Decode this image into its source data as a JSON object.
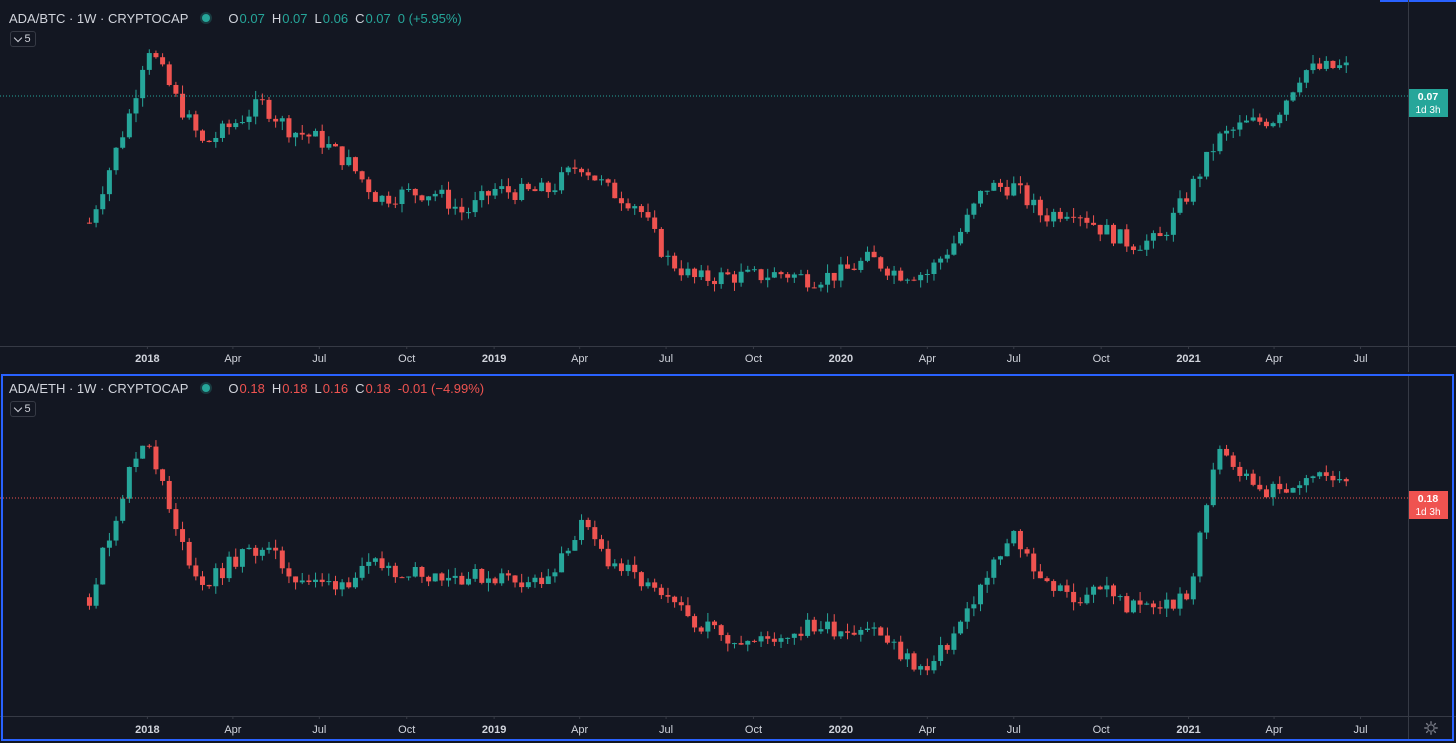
{
  "colors": {
    "background": "#131722",
    "up": "#26a69a",
    "down": "#ef5350",
    "axis_text": "#d1d4dc",
    "axis_line": "#363a45",
    "active_border": "#2962ff"
  },
  "icons": [
    "chevron-down-icon",
    "gear-icon",
    "status-dot-icon"
  ],
  "panes": [
    {
      "legend": {
        "symbol": "ADA/BTC · 1W · CRYPTOCAP",
        "open_label": "O",
        "open": "0.07",
        "high_label": "H",
        "high": "0.07",
        "low_label": "L",
        "low": "0.06",
        "close_label": "C",
        "close": "0.07",
        "change": "0 (+5.95%)",
        "direction": "up"
      },
      "indicator_count": "5",
      "price_tag": {
        "price": "0.07",
        "countdown": "1d 3h",
        "color": "#26a69a"
      }
    },
    {
      "legend": {
        "symbol": "ADA/ETH · 1W · CRYPTOCAP",
        "open_label": "O",
        "open": "0.18",
        "high_label": "H",
        "high": "0.18",
        "low_label": "L",
        "low": "0.16",
        "close_label": "C",
        "close": "0.18",
        "change": "-0.01 (−4.99%)",
        "direction": "down"
      },
      "indicator_count": "5",
      "price_tag": {
        "price": "0.18",
        "countdown": "1d 3h",
        "color": "#ef5350"
      }
    }
  ],
  "chart_data": [
    {
      "type": "line",
      "title": "ADA/BTC · 1W · CRYPTOCAP",
      "x_tick_labels": [
        "2018",
        "Apr",
        "Jul",
        "Oct",
        "2019",
        "Apr",
        "Jul",
        "Oct",
        "2020",
        "Apr",
        "Jul",
        "Oct",
        "2021",
        "Apr",
        "Jul"
      ],
      "x_tick_dates": [
        "2018-01-01",
        "2018-04-01",
        "2018-07-01",
        "2018-10-01",
        "2019-01-01",
        "2019-04-01",
        "2019-07-01",
        "2019-10-01",
        "2020-01-01",
        "2020-04-01",
        "2020-07-01",
        "2020-10-01",
        "2021-01-01",
        "2021-04-01",
        "2021-07-01"
      ],
      "x_range": [
        "2017-10-01",
        "2021-08-20"
      ],
      "y_relative_range": [
        0.0,
        1.0
      ],
      "series": [
        {
          "dates": [
            "2017-11-01",
            "2017-12-15",
            "2018-01-01",
            "2018-02-01",
            "2018-03-01",
            "2018-04-01",
            "2018-05-01",
            "2018-06-01",
            "2018-07-01",
            "2018-08-01",
            "2018-09-01",
            "2018-10-01",
            "2018-11-01",
            "2018-12-01",
            "2019-01-01",
            "2019-02-01",
            "2019-03-01",
            "2019-04-01",
            "2019-05-01",
            "2019-06-01",
            "2019-07-01",
            "2019-08-01",
            "2019-09-01",
            "2019-10-01",
            "2019-11-01",
            "2019-12-01",
            "2020-01-01",
            "2020-02-01",
            "2020-03-01",
            "2020-04-01",
            "2020-05-01",
            "2020-06-01",
            "2020-07-01",
            "2020-08-01",
            "2020-09-01",
            "2020-10-01",
            "2020-11-01",
            "2020-12-01",
            "2021-01-01",
            "2021-02-01",
            "2021-03-01",
            "2021-04-01",
            "2021-05-01",
            "2021-06-01",
            "2021-06-20"
          ],
          "values": [
            0.32,
            0.7,
            0.92,
            0.73,
            0.58,
            0.65,
            0.72,
            0.63,
            0.6,
            0.52,
            0.4,
            0.42,
            0.42,
            0.35,
            0.43,
            0.42,
            0.43,
            0.52,
            0.43,
            0.38,
            0.2,
            0.13,
            0.14,
            0.14,
            0.15,
            0.13,
            0.15,
            0.2,
            0.15,
            0.15,
            0.26,
            0.44,
            0.44,
            0.34,
            0.37,
            0.3,
            0.25,
            0.26,
            0.42,
            0.6,
            0.65,
            0.67,
            0.83,
            0.84,
            0.84
          ]
        }
      ]
    },
    {
      "type": "line",
      "title": "ADA/ETH · 1W · CRYPTOCAP",
      "x_tick_labels": [
        "2018",
        "Apr",
        "Jul",
        "Oct",
        "2019",
        "Apr",
        "Jul",
        "Oct",
        "2020",
        "Apr",
        "Jul",
        "Oct",
        "2021",
        "Apr",
        "Jul"
      ],
      "x_tick_dates": [
        "2018-01-01",
        "2018-04-01",
        "2018-07-01",
        "2018-10-01",
        "2019-01-01",
        "2019-04-01",
        "2019-07-01",
        "2019-10-01",
        "2020-01-01",
        "2020-04-01",
        "2020-07-01",
        "2020-10-01",
        "2021-01-01",
        "2021-04-01",
        "2021-07-01"
      ],
      "x_range": [
        "2017-10-01",
        "2021-08-20"
      ],
      "y_relative_range": [
        0.0,
        1.0
      ],
      "series": [
        {
          "dates": [
            "2017-11-01",
            "2017-12-15",
            "2018-01-01",
            "2018-02-01",
            "2018-03-01",
            "2018-04-01",
            "2018-05-01",
            "2018-06-01",
            "2018-07-01",
            "2018-08-01",
            "2018-09-01",
            "2018-10-01",
            "2018-11-01",
            "2018-12-01",
            "2019-01-01",
            "2019-02-01",
            "2019-03-01",
            "2019-04-01",
            "2019-05-01",
            "2019-06-01",
            "2019-07-01",
            "2019-08-01",
            "2019-09-01",
            "2019-10-01",
            "2019-11-01",
            "2019-12-01",
            "2020-01-01",
            "2020-02-01",
            "2020-03-01",
            "2020-04-01",
            "2020-05-01",
            "2020-06-01",
            "2020-07-01",
            "2020-08-01",
            "2020-09-01",
            "2020-10-01",
            "2020-11-01",
            "2020-12-01",
            "2021-01-01",
            "2021-02-01",
            "2021-03-01",
            "2021-04-01",
            "2021-05-01",
            "2021-06-01",
            "2021-06-20"
          ],
          "values": [
            0.32,
            0.77,
            0.88,
            0.53,
            0.36,
            0.44,
            0.5,
            0.4,
            0.36,
            0.38,
            0.43,
            0.41,
            0.4,
            0.39,
            0.39,
            0.38,
            0.37,
            0.57,
            0.45,
            0.38,
            0.3,
            0.24,
            0.19,
            0.16,
            0.19,
            0.22,
            0.21,
            0.22,
            0.13,
            0.06,
            0.2,
            0.38,
            0.53,
            0.38,
            0.31,
            0.36,
            0.28,
            0.29,
            0.31,
            0.86,
            0.73,
            0.68,
            0.72,
            0.74,
            0.74
          ]
        }
      ]
    }
  ]
}
